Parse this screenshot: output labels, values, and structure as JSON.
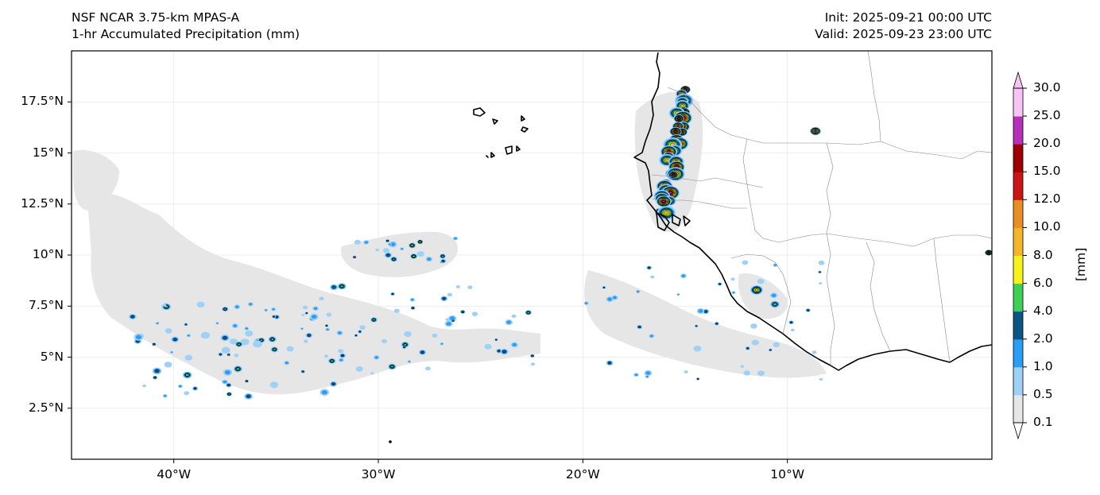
{
  "header": {
    "model": "NSF NCAR 3.75-km MPAS-A",
    "field": "1-hr Accumulated Precipitation (mm)",
    "init": "Init: 2025-09-21 00:00 UTC",
    "valid": "Valid: 2025-09-23 23:00 UTC"
  },
  "map": {
    "lon_range": [
      -45,
      0
    ],
    "lat_range": [
      0,
      20
    ],
    "lat_ticks": [
      "17.5°N",
      "15°N",
      "12.5°N",
      "10°N",
      "7.5°N",
      "5°N",
      "2.5°N"
    ],
    "lon_ticks": [
      "40°W",
      "30°W",
      "20°W",
      "10°W"
    ],
    "gridlines": true
  },
  "colorbar": {
    "units": "[mm]",
    "levels": [
      "0.1",
      "0.5",
      "1.0",
      "2.0",
      "4.0",
      "6.0",
      "8.0",
      "10.0",
      "12.0",
      "15.0",
      "20.0",
      "25.0",
      "30.0"
    ],
    "colors": [
      "#e6e6e6",
      "#9fd0f6",
      "#2a9df4",
      "#0b5584",
      "#3ecf55",
      "#f6f21c",
      "#f5b52a",
      "#ec8c26",
      "#cd1414",
      "#9e0000",
      "#b531b9",
      "#f7c4f4"
    ]
  }
}
